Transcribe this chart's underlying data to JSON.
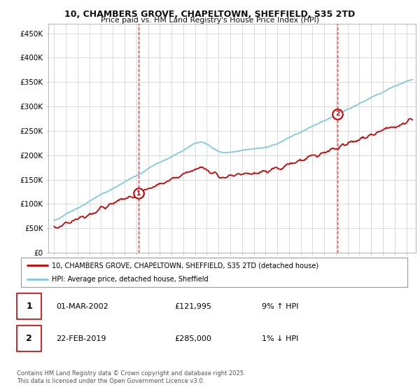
{
  "title": "10, CHAMBERS GROVE, CHAPELTOWN, SHEFFIELD, S35 2TD",
  "subtitle": "Price paid vs. HM Land Registry's House Price Index (HPI)",
  "ylabel_ticks": [
    "£0",
    "£50K",
    "£100K",
    "£150K",
    "£200K",
    "£250K",
    "£300K",
    "£350K",
    "£400K",
    "£450K"
  ],
  "ytick_values": [
    0,
    50000,
    100000,
    150000,
    200000,
    250000,
    300000,
    350000,
    400000,
    450000
  ],
  "ylim": [
    0,
    470000
  ],
  "xlim_start": 1994.5,
  "xlim_end": 2025.8,
  "marker1_x": 2002.17,
  "marker1_y": 121995,
  "marker2_x": 2019.14,
  "marker2_y": 285000,
  "legend_line1": "10, CHAMBERS GROVE, CHAPELTOWN, SHEFFIELD, S35 2TD (detached house)",
  "legend_line2": "HPI: Average price, detached house, Sheffield",
  "annotation1_num": "1",
  "annotation1_date": "01-MAR-2002",
  "annotation1_price": "£121,995",
  "annotation1_hpi": "9% ↑ HPI",
  "annotation2_num": "2",
  "annotation2_date": "22-FEB-2019",
  "annotation2_price": "£285,000",
  "annotation2_hpi": "1% ↓ HPI",
  "footer": "Contains HM Land Registry data © Crown copyright and database right 2025.\nThis data is licensed under the Open Government Licence v3.0.",
  "hpi_color": "#7ec8e3",
  "price_color": "#cc0000",
  "vline_color": "#cc0000",
  "grid_color": "#cccccc",
  "background_color": "#ffffff"
}
